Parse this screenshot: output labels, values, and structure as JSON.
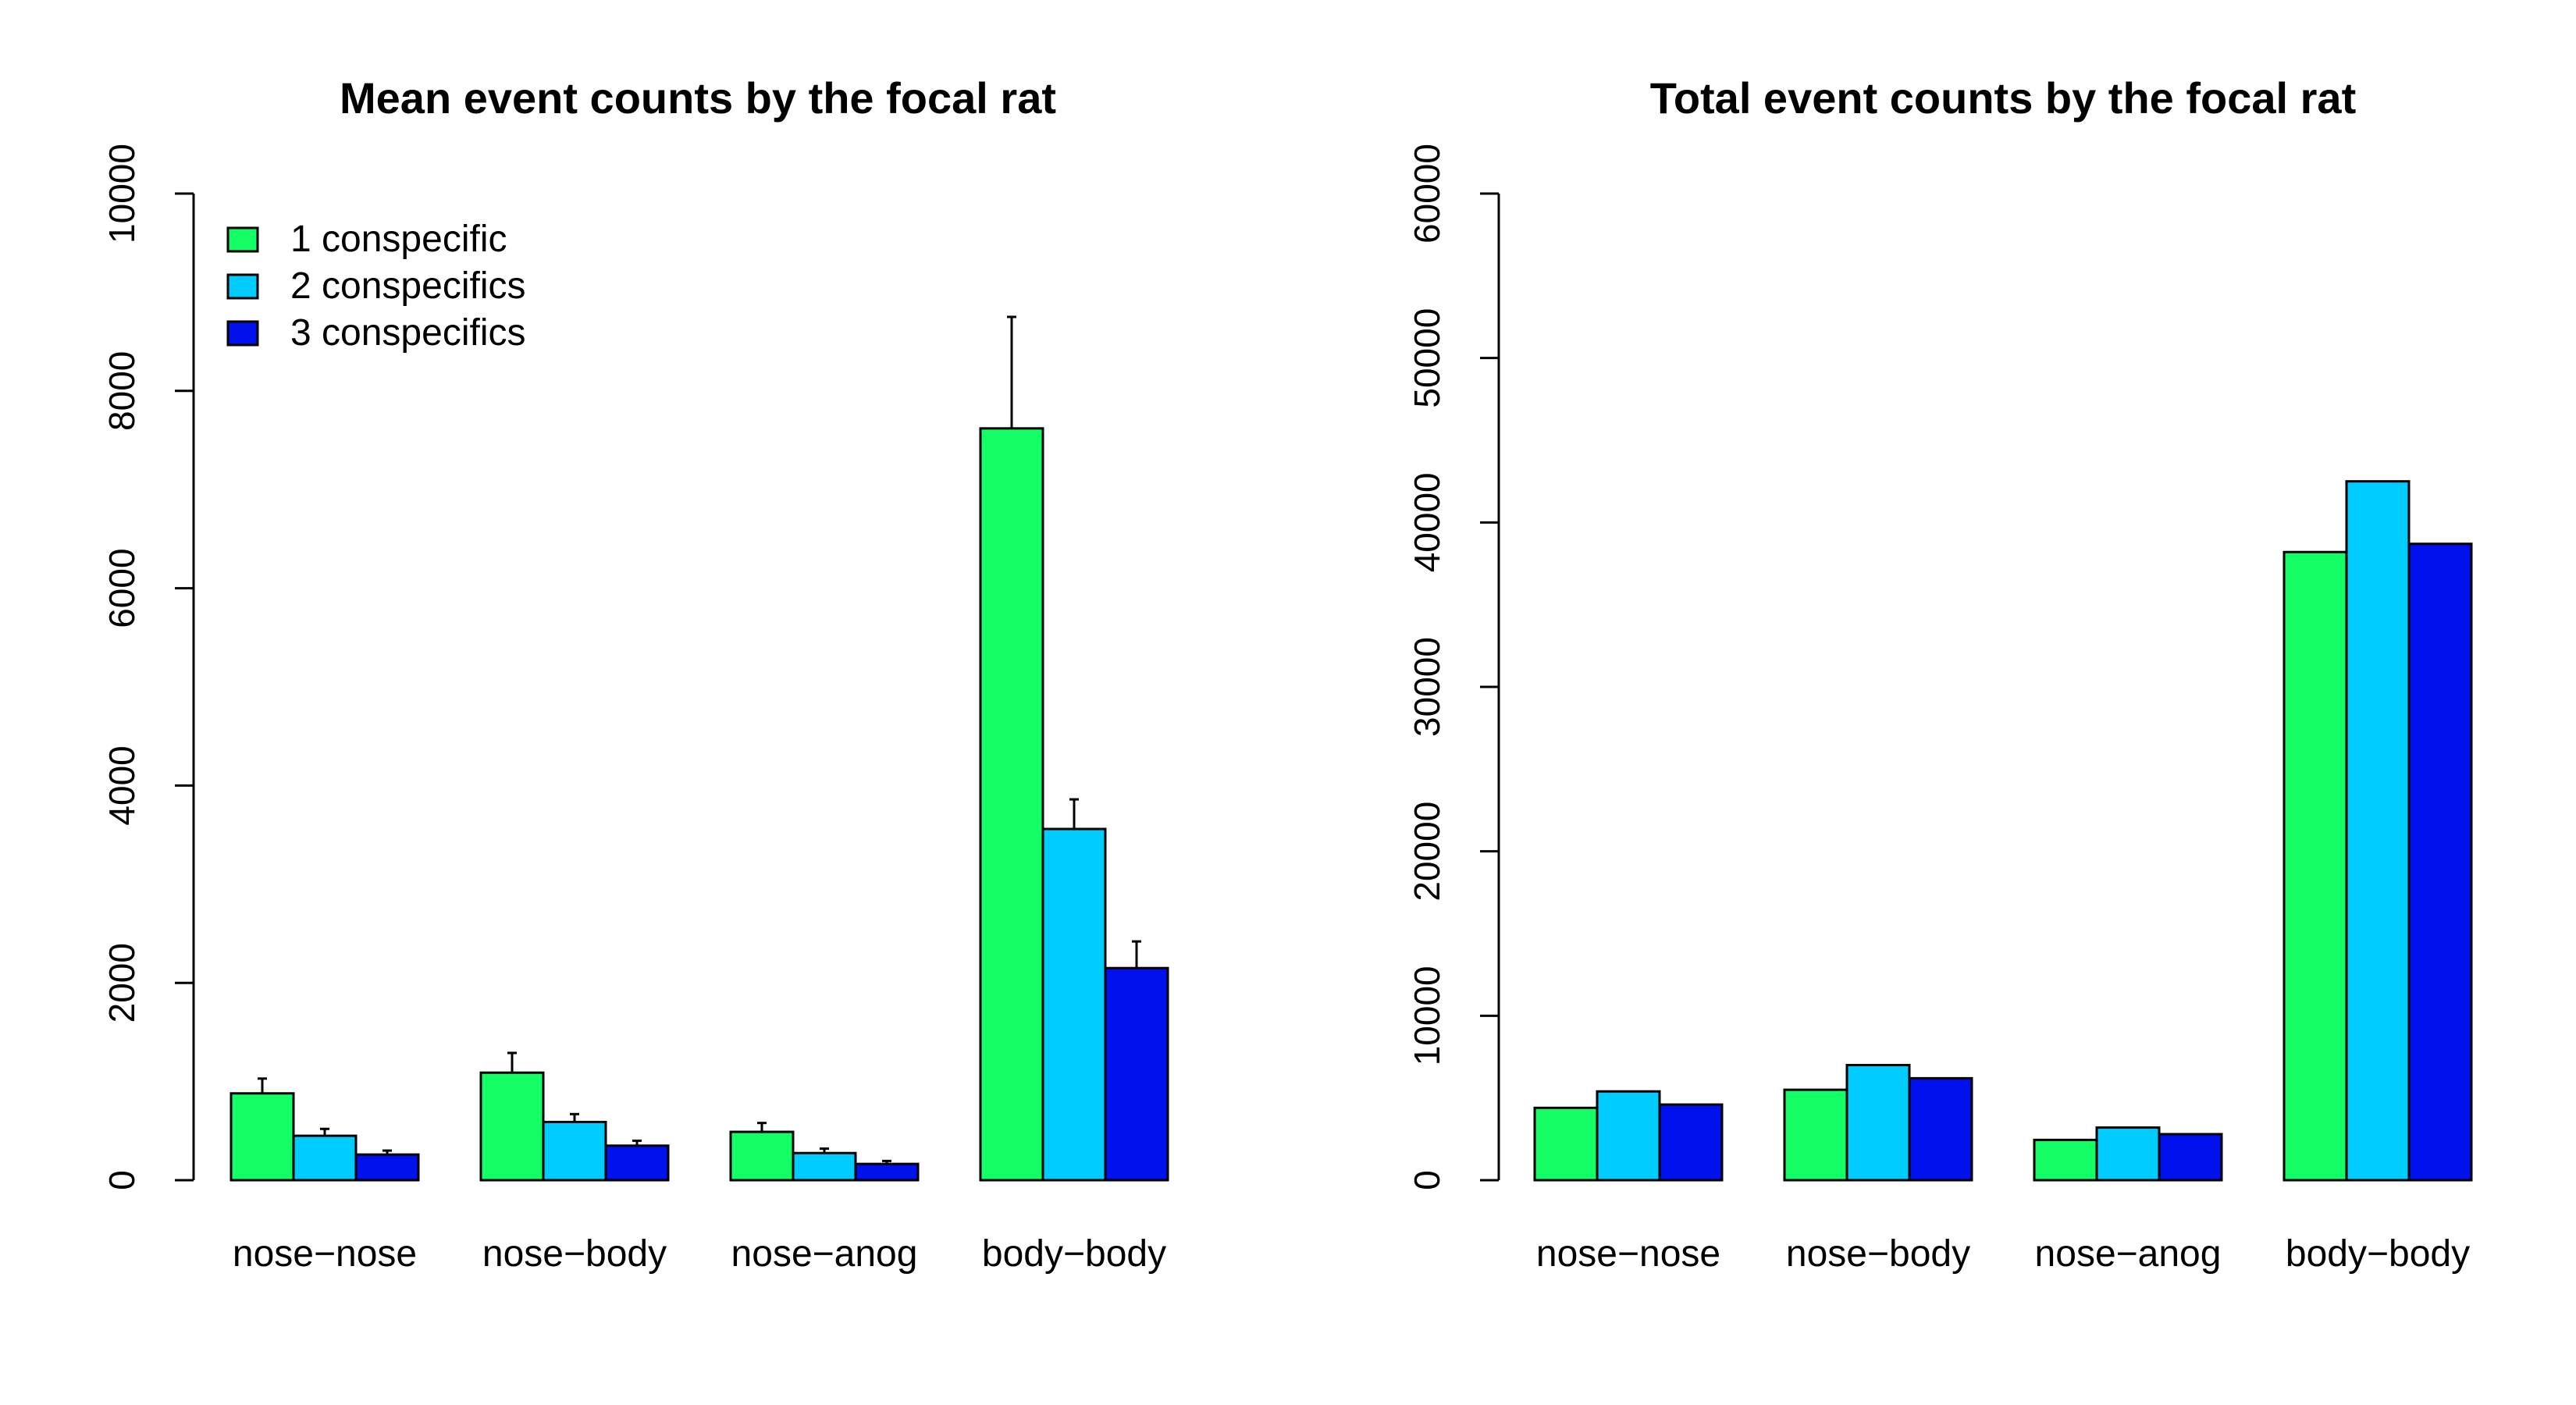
{
  "chart_data": [
    {
      "type": "bar",
      "title": "Mean event counts by the focal rat",
      "categories": [
        "nose−nose",
        "nose−body",
        "nose−anog",
        "body−body"
      ],
      "ylim": [
        0,
        10000
      ],
      "yticks": [
        "0",
        "2000",
        "4000",
        "6000",
        "8000",
        "10000"
      ],
      "ytick_values": [
        0,
        2000,
        4000,
        6000,
        8000,
        10000
      ],
      "legend_position": "top-left",
      "series": [
        {
          "name": "1 conspecific",
          "color": "#14ff66",
          "values": [
            880,
            1090,
            490,
            7620
          ],
          "err_upper": [
            1030,
            1290,
            580,
            8750
          ]
        },
        {
          "name": "2 conspecifics",
          "color": "#00ccff",
          "values": [
            450,
            590,
            275,
            3560
          ],
          "err_upper": [
            520,
            670,
            320,
            3860
          ]
        },
        {
          "name": "3 conspecifics",
          "color": "#0011ee",
          "values": [
            260,
            350,
            165,
            2150
          ],
          "err_upper": [
            300,
            400,
            195,
            2420
          ]
        }
      ]
    },
    {
      "type": "bar",
      "title": "Total event counts by the focal rat",
      "categories": [
        "nose−nose",
        "nose−body",
        "nose−anog",
        "body−body"
      ],
      "ylim": [
        0,
        60000
      ],
      "yticks": [
        "0",
        "10000",
        "20000",
        "30000",
        "40000",
        "50000",
        "60000"
      ],
      "ytick_values": [
        0,
        10000,
        20000,
        30000,
        40000,
        50000,
        60000
      ],
      "series": [
        {
          "color": "#14ff66",
          "values": [
            4400,
            5500,
            2450,
            38200
          ]
        },
        {
          "color": "#00ccff",
          "values": [
            5400,
            7000,
            3200,
            42500
          ]
        },
        {
          "color": "#0011ee",
          "values": [
            4600,
            6200,
            2800,
            38700
          ]
        }
      ]
    }
  ]
}
